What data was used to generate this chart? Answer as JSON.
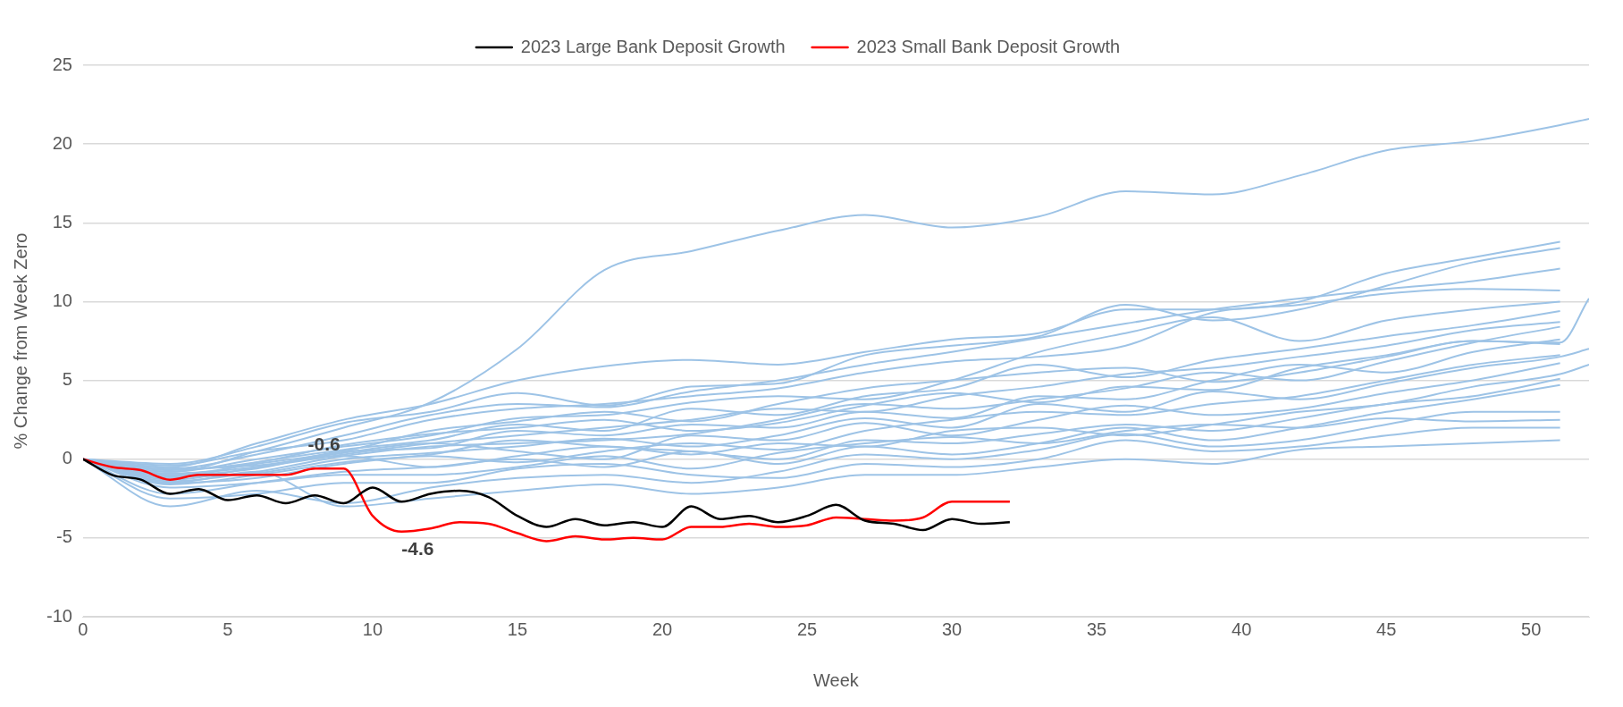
{
  "chart_data": {
    "type": "line",
    "xlabel": "Week",
    "ylabel": "% Change from Week Zero",
    "x": [
      0,
      3,
      6,
      9,
      12,
      15,
      18,
      21,
      24,
      27,
      30,
      33,
      36,
      39,
      42,
      45,
      48,
      51
    ],
    "xlim": [
      0,
      52
    ],
    "xticks": [
      0,
      5,
      10,
      15,
      20,
      25,
      30,
      35,
      40,
      45,
      50
    ],
    "ylim": [
      -10,
      25
    ],
    "yticks": [
      -10,
      -5,
      0,
      5,
      10,
      15,
      20,
      25
    ],
    "grid": "y",
    "legend": "top",
    "marker": "none",
    "line_style": "solid",
    "annotations": [
      {
        "text": "-0.6",
        "x": 9,
        "y": -0.6
      },
      {
        "text": "-4.6",
        "x": 11,
        "y": -4.6
      }
    ],
    "series": [
      {
        "color": "#9dc3e6",
        "x": [
          0,
          3,
          6,
          9,
          12,
          15,
          18,
          21,
          24,
          27,
          30,
          33,
          36,
          39,
          42,
          45,
          48,
          51,
          52
        ],
        "values": [
          0,
          -0.8,
          0.5,
          2.0,
          3.6,
          7.0,
          12.0,
          13.2,
          14.5,
          15.5,
          14.7,
          15.4,
          17.0,
          16.8,
          18.0,
          19.6,
          20.2,
          21.2,
          21.6
        ]
      },
      {
        "color": "#9dc3e6",
        "values": [
          0,
          -0.5,
          1.0,
          2.5,
          3.5,
          5.0,
          5.9,
          6.3,
          6.0,
          6.8,
          7.6,
          8.0,
          9.5,
          9.5,
          10.0,
          11.8,
          12.8,
          13.8
        ]
      },
      {
        "color": "#9dc3e6",
        "values": [
          0,
          -0.3,
          0.8,
          2.3,
          3.0,
          4.2,
          3.4,
          4.6,
          4.8,
          6.6,
          7.2,
          7.8,
          9.8,
          8.8,
          9.5,
          11.0,
          12.5,
          13.4
        ]
      },
      {
        "color": "#9dc3e6",
        "values": [
          0,
          -0.6,
          0.3,
          1.5,
          2.8,
          3.5,
          3.3,
          4.3,
          5.0,
          6.0,
          6.8,
          7.7,
          8.6,
          9.5,
          10.2,
          10.8,
          11.3,
          12.1
        ]
      },
      {
        "color": "#9dc3e6",
        "values": [
          0,
          -0.4,
          0.5,
          1.2,
          2.5,
          3.2,
          3.5,
          4.0,
          4.5,
          5.5,
          6.2,
          6.5,
          7.2,
          9.3,
          9.8,
          10.5,
          10.8,
          10.7
        ]
      },
      {
        "color": "#9dc3e6",
        "x": [
          0,
          3,
          6,
          9,
          12,
          15,
          18,
          21,
          24,
          27,
          30,
          33,
          36,
          39,
          42,
          45,
          48,
          51,
          52
        ],
        "values": [
          0,
          -1.0,
          -0.3,
          0.5,
          1.8,
          2.4,
          3.0,
          2.4,
          3.5,
          4.5,
          5.0,
          5.5,
          5.8,
          4.9,
          5.5,
          6.5,
          7.5,
          7.4,
          10.2
        ]
      },
      {
        "color": "#9dc3e6",
        "values": [
          0,
          -0.8,
          0.0,
          0.8,
          1.5,
          2.6,
          2.8,
          3.6,
          4.0,
          3.8,
          5.0,
          6.8,
          8.0,
          9.0,
          7.5,
          8.8,
          9.5,
          10.0
        ]
      },
      {
        "color": "#9dc3e6",
        "values": [
          0,
          -1.2,
          -0.2,
          0.6,
          1.2,
          2.2,
          1.8,
          3.2,
          2.8,
          4.0,
          4.5,
          6.0,
          5.2,
          6.3,
          7.0,
          7.8,
          8.5,
          9.4
        ]
      },
      {
        "color": "#9dc3e6",
        "values": [
          0,
          -0.9,
          -0.5,
          0.3,
          1.0,
          1.5,
          2.0,
          2.5,
          3.2,
          3.0,
          4.0,
          4.6,
          5.4,
          5.8,
          6.5,
          7.2,
          8.2,
          8.7
        ]
      },
      {
        "color": "#9dc3e6",
        "values": [
          0,
          -1.4,
          -0.8,
          0.2,
          0.8,
          1.0,
          1.2,
          1.6,
          2.5,
          3.5,
          3.2,
          3.8,
          4.5,
          5.5,
          5.0,
          6.2,
          7.4,
          8.4
        ]
      },
      {
        "color": "#9dc3e6",
        "values": [
          0,
          -1.0,
          -0.6,
          0.5,
          0.7,
          1.8,
          1.5,
          2.2,
          2.0,
          3.0,
          2.6,
          4.0,
          3.8,
          5.0,
          6.0,
          5.5,
          6.8,
          7.6
        ]
      },
      {
        "color": "#9dc3e6",
        "values": [
          0,
          -0.7,
          -0.2,
          0.9,
          1.6,
          2.0,
          2.5,
          1.8,
          2.3,
          3.4,
          4.2,
          3.6,
          4.6,
          4.4,
          5.8,
          6.6,
          7.5,
          7.3
        ]
      },
      {
        "color": "#9dc3e6",
        "x": [
          0,
          3,
          6,
          9,
          12,
          15,
          18,
          21,
          24,
          27,
          30,
          33,
          36,
          39,
          42,
          45,
          48,
          51,
          52
        ],
        "values": [
          0,
          -1.1,
          -0.9,
          0.0,
          0.4,
          0.8,
          1.3,
          0.8,
          1.5,
          2.6,
          2.0,
          3.5,
          3.0,
          4.3,
          3.8,
          4.8,
          5.8,
          6.5,
          7.0
        ]
      },
      {
        "color": "#9dc3e6",
        "values": [
          0,
          -1.5,
          -1.2,
          -0.3,
          0.2,
          -0.2,
          0.5,
          1.0,
          0.6,
          1.8,
          2.5,
          3.0,
          2.8,
          3.5,
          4.0,
          5.0,
          6.0,
          6.6
        ]
      },
      {
        "color": "#9dc3e6",
        "values": [
          0,
          -1.3,
          -0.5,
          0.4,
          1.0,
          0.5,
          0.0,
          1.5,
          1.2,
          2.3,
          1.5,
          2.5,
          3.4,
          2.8,
          3.2,
          4.2,
          5.0,
          6.1
        ]
      },
      {
        "color": "#9dc3e6",
        "x": [
          0,
          3,
          6,
          9,
          12,
          15,
          18,
          21,
          24,
          27,
          30,
          33,
          36,
          39,
          42,
          45,
          48,
          51,
          52
        ],
        "values": [
          0,
          -0.6,
          -0.4,
          0.2,
          -0.5,
          0.2,
          0.8,
          0.3,
          1.0,
          0.8,
          1.8,
          2.0,
          1.5,
          2.2,
          3.0,
          3.5,
          4.6,
          5.4,
          6.0
        ]
      },
      {
        "color": "#9dc3e6",
        "values": [
          0,
          -1.6,
          -1.0,
          -0.2,
          0.3,
          1.2,
          0.8,
          0.5,
          0.0,
          1.2,
          1.0,
          1.6,
          2.2,
          1.8,
          2.6,
          3.5,
          4.0,
          5.1
        ]
      },
      {
        "color": "#9dc3e6",
        "values": [
          0,
          -2.2,
          -1.5,
          -0.8,
          -0.5,
          0.0,
          -0.5,
          0.5,
          -0.3,
          0.8,
          0.3,
          1.0,
          2.0,
          1.2,
          2.0,
          3.0,
          3.8,
          4.7
        ]
      },
      {
        "color": "#9dc3e6",
        "values": [
          0,
          -1.8,
          -1.5,
          -1.0,
          -1.0,
          -0.5,
          0.2,
          -0.6,
          0.4,
          1.0,
          1.4,
          1.0,
          1.8,
          2.2,
          2.0,
          2.6,
          2.4,
          2.5
        ]
      },
      {
        "color": "#9dc3e6",
        "values": [
          0,
          -3.0,
          -2.0,
          -2.8,
          -1.8,
          -1.2,
          -1.0,
          -1.5,
          -0.8,
          0.3,
          0.0,
          0.6,
          1.6,
          0.8,
          1.2,
          2.2,
          3.0,
          3.0
        ]
      },
      {
        "color": "#9dc3e6",
        "values": [
          0,
          -2.5,
          -2.2,
          -1.5,
          -1.5,
          -0.6,
          -0.3,
          -1.0,
          -1.2,
          -0.3,
          -0.5,
          0.0,
          1.2,
          0.5,
          0.8,
          1.5,
          2.0,
          2.0
        ]
      },
      {
        "color": "#9dc3e6",
        "values": [
          0,
          -1.5,
          -0.8,
          -3.0,
          -2.5,
          -2.0,
          -1.6,
          -2.2,
          -1.8,
          -1.0,
          -1.0,
          -0.5,
          0.0,
          -0.3,
          0.6,
          0.8,
          1.0,
          1.2
        ]
      },
      {
        "name": "2023 Large Bank Deposit Growth",
        "color": "#000000",
        "x": [
          0,
          1,
          2,
          3,
          4,
          5,
          6,
          7,
          8,
          9,
          10,
          11,
          12,
          13,
          14,
          15,
          16,
          17,
          18,
          19,
          20,
          21,
          22,
          23,
          24,
          25,
          26,
          27,
          28,
          29,
          30,
          31,
          32
        ],
        "values": [
          0,
          -1.0,
          -1.3,
          -2.2,
          -1.9,
          -2.6,
          -2.3,
          -2.8,
          -2.3,
          -2.8,
          -1.8,
          -2.7,
          -2.2,
          -2.0,
          -2.4,
          -3.6,
          -4.3,
          -3.8,
          -4.2,
          -4.0,
          -4.3,
          -3.0,
          -3.8,
          -3.6,
          -4.0,
          -3.6,
          -2.9,
          -3.9,
          -4.1,
          -4.5,
          -3.8,
          -4.1,
          -4.0
        ]
      },
      {
        "name": "2023 Small Bank Deposit Growth",
        "color": "#ff0000",
        "x": [
          0,
          1,
          2,
          3,
          4,
          5,
          6,
          7,
          8,
          9,
          10,
          11,
          12,
          13,
          14,
          15,
          16,
          17,
          18,
          19,
          20,
          21,
          22,
          23,
          24,
          25,
          26,
          27,
          28,
          29,
          30,
          31,
          32
        ],
        "values": [
          0,
          -0.5,
          -0.7,
          -1.3,
          -1.0,
          -1.0,
          -1.0,
          -1.0,
          -0.6,
          -0.6,
          -3.6,
          -4.6,
          -4.4,
          -4.0,
          -4.1,
          -4.7,
          -5.2,
          -4.9,
          -5.1,
          -5.0,
          -5.1,
          -4.3,
          -4.3,
          -4.1,
          -4.3,
          -4.2,
          -3.7,
          -3.8,
          -3.9,
          -3.7,
          -2.7,
          -2.7,
          -2.7
        ]
      }
    ]
  }
}
